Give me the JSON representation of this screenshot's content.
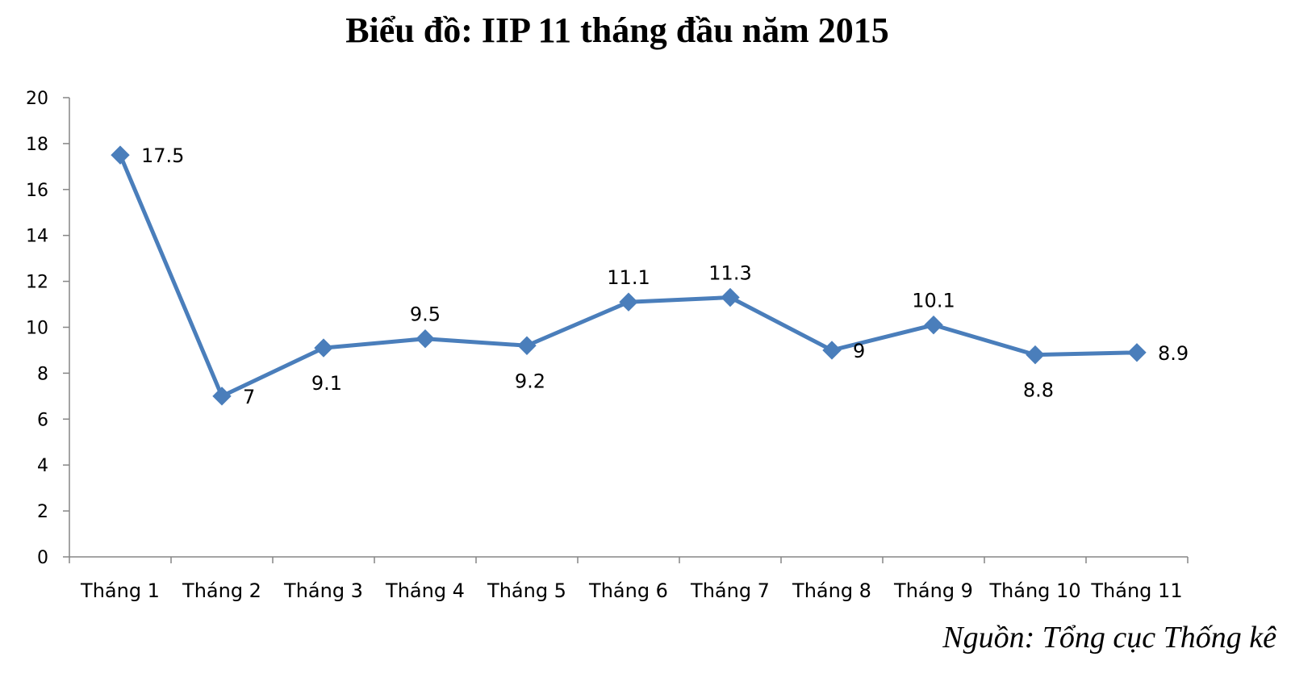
{
  "chart_data": {
    "type": "line",
    "title": "Biểu đồ: IIP 11 tháng đầu năm 2015",
    "categories": [
      "Tháng 1",
      "Tháng 2",
      "Tháng 3",
      "Tháng 4",
      "Tháng 5",
      "Tháng 6",
      "Tháng 7",
      "Tháng 8",
      "Tháng 9",
      "Tháng 10",
      "Tháng 11"
    ],
    "series": [
      {
        "values": [
          17.5,
          7,
          9.1,
          9.5,
          9.2,
          11.1,
          11.3,
          9,
          10.1,
          8.8,
          8.9
        ],
        "labels": [
          "17.5",
          "7",
          "9.1",
          "9.5",
          "9.2",
          "11.1",
          "11.3",
          "9",
          "10.1",
          "8.8",
          "8.9"
        ],
        "color": "#4a7ebb",
        "marker": "diamond"
      }
    ],
    "ylim": [
      0,
      20
    ],
    "yticks": [
      "0",
      "2",
      "4",
      "6",
      "8",
      "10",
      "12",
      "14",
      "16",
      "18",
      "20"
    ],
    "grid": false,
    "legend": "none"
  },
  "source": "Nguồn: Tổng cục Thống kê"
}
